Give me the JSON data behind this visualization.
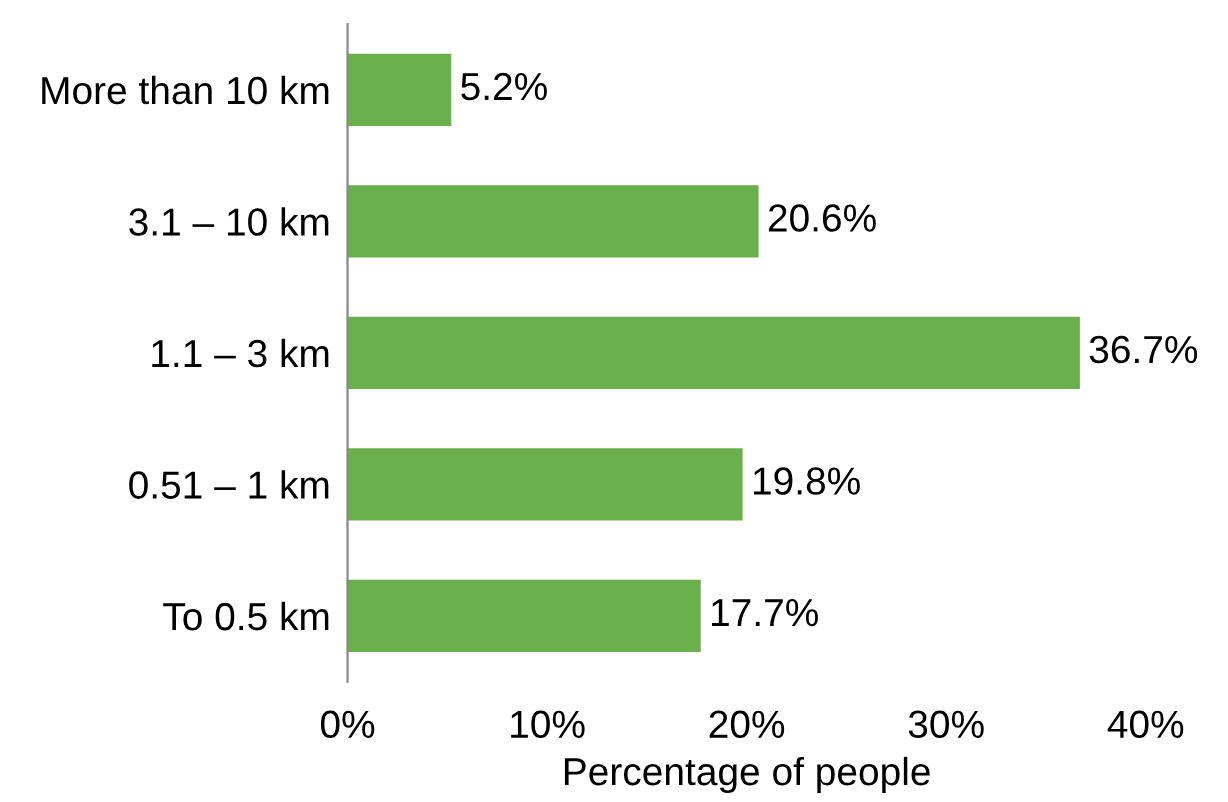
{
  "chart_data": {
    "type": "bar",
    "orientation": "horizontal",
    "categories": [
      "More than 10 km",
      "3.1 – 10 km",
      "1.1 – 3 km",
      "0.51 – 1 km",
      "To 0.5 km"
    ],
    "values": [
      5.2,
      20.6,
      36.7,
      19.8,
      17.7
    ],
    "value_labels": [
      "5.2%",
      "20.6%",
      "36.7%",
      "19.8%",
      "17.7%"
    ],
    "color": "#6ab04c",
    "xlabel": "Percentage of people",
    "xlim": [
      0,
      40
    ],
    "xticks": [
      {
        "value": 0,
        "label": "0%"
      },
      {
        "value": 10,
        "label": "10%"
      },
      {
        "value": 20,
        "label": "20%"
      },
      {
        "value": 30,
        "label": "30%"
      },
      {
        "value": 40,
        "label": "40%"
      }
    ],
    "grid": false,
    "legend": false
  }
}
